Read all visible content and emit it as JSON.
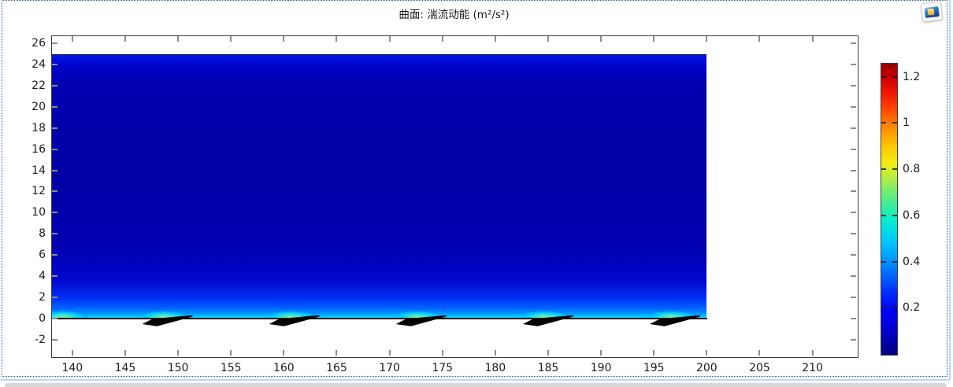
{
  "title": "曲面: 湍流动能 (m²/s²)",
  "corner_icon": "plot-thumbnail",
  "chart_data": {
    "type": "heatmap",
    "title": "曲面: 湍流动能 (m²/s²)",
    "xlabel": "",
    "ylabel": "",
    "grid": false,
    "xlim": [
      138,
      214.2
    ],
    "ylim": [
      -3.57,
      26.75
    ],
    "x_ticks": [
      140,
      145,
      150,
      155,
      160,
      165,
      170,
      175,
      180,
      185,
      190,
      195,
      200,
      205,
      210
    ],
    "y_ticks": [
      26,
      24,
      22,
      20,
      18,
      16,
      14,
      12,
      10,
      8,
      6,
      4,
      2,
      0,
      -2
    ],
    "surface": {
      "x_range": [
        138,
        200
      ],
      "y_range": [
        0,
        25
      ],
      "description": "Turbulent kinetic energy field: deep blue bulk (~0.05 m²/s²), brighter blue band at the top boundary y=25, blue brightening toward the bottom wall with a thin cyan high-TKE layer along y≈0.2, and cyan-green wake spots above each foil",
      "gradient_stops": [
        [
          0,
          "#0017f2"
        ],
        [
          1.2,
          "#000ede"
        ],
        [
          5,
          "#0003c4"
        ],
        [
          12,
          "#0000ae"
        ],
        [
          45,
          "#0000a5"
        ],
        [
          75,
          "#0000b4"
        ],
        [
          86,
          "#000ad0"
        ],
        [
          92,
          "#0031f5"
        ],
        [
          95.5,
          "#005eff"
        ],
        [
          97.6,
          "#008fff"
        ],
        [
          98.8,
          "#00c3ff"
        ],
        [
          99.5,
          "#00e4f8"
        ],
        [
          100,
          "#00cdfa"
        ]
      ]
    },
    "foils": {
      "x_starts": [
        146.6,
        158.6,
        170.6,
        182.6,
        194.6
      ],
      "profile": [
        [
          0,
          -0.52
        ],
        [
          1.0,
          -0.02
        ],
        [
          4.8,
          0.32
        ],
        [
          4.72,
          0.16
        ],
        [
          1.4,
          -0.73
        ]
      ],
      "color": "#050505"
    },
    "wakes": {
      "centers_x": [
        139.3,
        148.85,
        160.85,
        172.85,
        184.85,
        196.85
      ],
      "center_y": 0.33
    },
    "colorbar": {
      "ticks": [
        0.2,
        0.4,
        0.6,
        0.8,
        1,
        1.2
      ],
      "tick_labels": [
        "0.2",
        "0.4",
        "0.6",
        "0.8",
        "1",
        "1.2"
      ],
      "value_range_estimate": [
        0,
        1.26
      ],
      "stops": [
        [
          0,
          "#000082"
        ],
        [
          10,
          "#0000d9"
        ],
        [
          15,
          "#0000fa"
        ],
        [
          22,
          "#0032ff"
        ],
        [
          30,
          "#0080ff"
        ],
        [
          38,
          "#00c3ff"
        ],
        [
          45,
          "#00e9db"
        ],
        [
          50,
          "#2deca8"
        ],
        [
          56,
          "#71ed71"
        ],
        [
          62,
          "#c3ee38"
        ],
        [
          66,
          "#f2ed12"
        ],
        [
          72,
          "#ffc400"
        ],
        [
          78,
          "#ff8c00"
        ],
        [
          84,
          "#ff4a00"
        ],
        [
          90,
          "#f11500"
        ],
        [
          95,
          "#cd0000"
        ],
        [
          100,
          "#9b0000"
        ]
      ]
    }
  },
  "colors": {
    "frame": "#3c3c3c",
    "tick": "#8c8c8c",
    "label": "#1c1c1c",
    "window_dotted_border": "#2e4e9e",
    "window_outer_border": "#b9d9f7",
    "bottom_strip": "#d7d7d7"
  }
}
